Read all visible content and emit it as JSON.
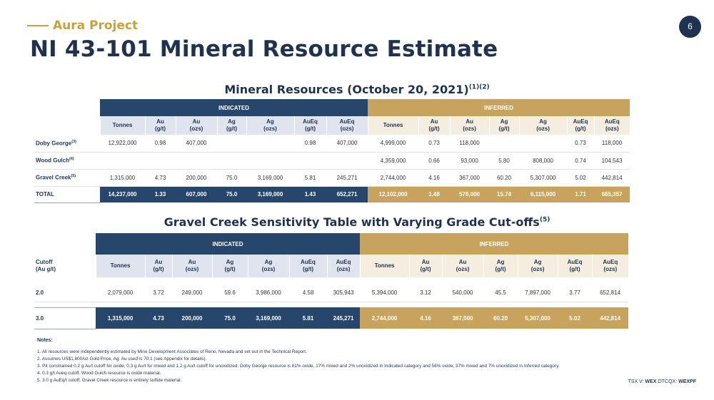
{
  "header": {
    "brand": "Aura Project",
    "title": "NI 43-101 Mineral Resource Estimate",
    "page_number": "6"
  },
  "table1": {
    "title": "Mineral Resources (October 20, 2021)",
    "title_sup": "(1)(2)",
    "group_indicated": "INDICATED",
    "group_inferred": "INFERRED",
    "columns": [
      {
        "l1": "Tonnes",
        "l2": ""
      },
      {
        "l1": "Au",
        "l2": "(g/t)"
      },
      {
        "l1": "Au",
        "l2": "(ozs)"
      },
      {
        "l1": "Ag",
        "l2": "(g/t)"
      },
      {
        "l1": "Ag",
        "l2": "(ozs)"
      },
      {
        "l1": "AuEq",
        "l2": "(g/t)"
      },
      {
        "l1": "AuEq",
        "l2": "(ozs)"
      }
    ],
    "rows": [
      {
        "label": "Doby George",
        "sup": "(3)",
        "ind": [
          "12,922,000",
          "0.98",
          "407,000",
          "",
          "",
          "0.98",
          "407,000"
        ],
        "inf": [
          "4,999,000",
          "0.73",
          "118,000",
          "",
          "",
          "0.73",
          "118,000"
        ]
      },
      {
        "label": "Wood Gulch",
        "sup": "(4)",
        "ind": [
          "",
          "",
          "",
          "",
          "",
          "",
          ""
        ],
        "inf": [
          "4,359,000",
          "0.66",
          "93,000",
          "5.80",
          "808,000",
          "0.74",
          "104,543"
        ]
      },
      {
        "label": "Gravel Creek",
        "sup": "(5)",
        "ind": [
          "1,315,000",
          "4.73",
          "200,000",
          "75.0",
          "3,169,000",
          "5.81",
          "245,271"
        ],
        "inf": [
          "2,744,000",
          "4.16",
          "367,000",
          "60.20",
          "5,307,000",
          "5.02",
          "442,814"
        ]
      }
    ],
    "total": {
      "label": "TOTAL",
      "ind": [
        "14,237,000",
        "1.33",
        "607,000",
        "75.0",
        "3,169,000",
        "1.43",
        "652,271"
      ],
      "inf": [
        "12,102,000",
        "1.48",
        "578,000",
        "15.74",
        "6,115,000",
        "1.71",
        "665,357"
      ]
    }
  },
  "table2": {
    "title": "Gravel Creek Sensitivity Table with Varying Grade Cut-offs",
    "title_sup": "(5)",
    "group_indicated": "INDICATED",
    "group_inferred": "INFERRED",
    "cutoff_label_l1": "Cutoff",
    "cutoff_label_l2": "(Au g/t)",
    "rows": [
      {
        "label": "2.0",
        "ind": [
          "2,079,000",
          "3.72",
          "249,000",
          "59.6",
          "3,986,000",
          "4.58",
          "305,943"
        ],
        "inf": [
          "5,394,000",
          "3.12",
          "540,000",
          "45.5",
          "7,897,000",
          "3.77",
          "652,814"
        ]
      }
    ],
    "highlight": {
      "label": "3.0",
      "ind": [
        "1,315,000",
        "4.73",
        "200,000",
        "75.0",
        "3,169,000",
        "5.81",
        "245,271"
      ],
      "inf": [
        "2,744,000",
        "4.16",
        "367,000",
        "60.20",
        "5,307,000",
        "5.02",
        "442,814"
      ]
    }
  },
  "notes": {
    "heading": "Notes:",
    "items": [
      "1.   All resources were independently estimated by Mine Development Associates of Reno, Nevada and set out in the Technical Report.",
      "2.   Assumes US$1,800/oz Gold Price, Ag: Au used is 70:1 (see Appendix for details).",
      "3.   Pit constrained 0.2 g Au/t cutoff for oxide, 0.3 g Au/t for mixed and 1.2 g Au/t cutoff for unoxidized. Doby George resource is 81% oxide, 17% mixed and 2% unoxidized in Indicated category and 56% oxide, 37% mixed and 7% unoxidized in Inferred category.",
      "4.   0.3 g/t Aueq cutoff. Wood Gulch resource is oxide material.",
      "5.   3.0 g AuEq/t cutoff. Gravel Creek resource is entirely sulfide material."
    ]
  },
  "footer": {
    "ticker_prefix": "TSX.V: ",
    "ticker_1": "WEX",
    "ticker_mid": " OTCQX: ",
    "ticker_2": "WEXPF"
  },
  "colors": {
    "navy": "#27466b",
    "gold": "#c7a35e",
    "brand_gold": "#c9a13a"
  }
}
